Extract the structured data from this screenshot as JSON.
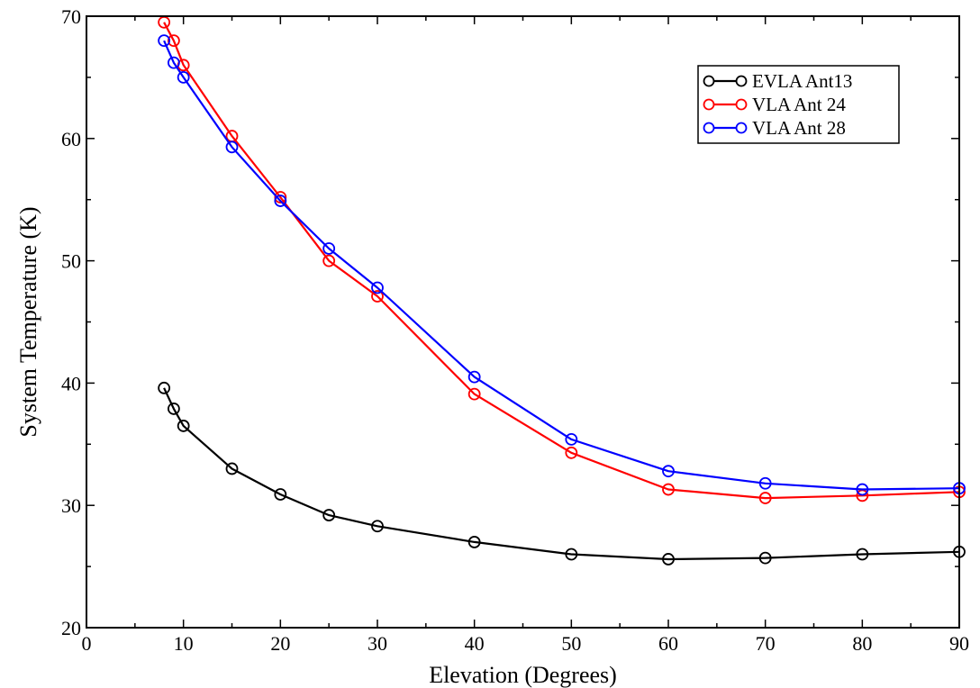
{
  "chart_data": {
    "type": "line",
    "title": "",
    "xlabel": "Elevation (Degrees)",
    "ylabel": "System Temperature (K)",
    "xlim": [
      0,
      90
    ],
    "ylim": [
      20,
      70
    ],
    "x_ticks": [
      0,
      10,
      20,
      30,
      40,
      50,
      60,
      70,
      80,
      90
    ],
    "y_ticks": [
      20,
      30,
      40,
      50,
      60,
      70
    ],
    "x_minor_step": 5,
    "y_minor_step": 5,
    "grid": false,
    "legend_position": "top-right",
    "marker": "open-circle",
    "series": [
      {
        "name": "EVLA Ant13",
        "color": "#000000",
        "x": [
          8,
          9,
          10,
          15,
          20,
          25,
          30,
          40,
          50,
          60,
          70,
          80,
          90
        ],
        "y": [
          39.6,
          37.9,
          36.5,
          33.0,
          30.9,
          29.2,
          28.3,
          27.0,
          26.0,
          25.6,
          25.7,
          26.0,
          26.2
        ]
      },
      {
        "name": "VLA Ant 24",
        "color": "#ff0000",
        "x": [
          8,
          9,
          10,
          15,
          20,
          25,
          30,
          40,
          50,
          60,
          70,
          80,
          90
        ],
        "y": [
          69.5,
          68.0,
          66.0,
          60.2,
          55.2,
          50.0,
          47.1,
          39.1,
          34.3,
          31.3,
          30.6,
          30.8,
          31.1
        ]
      },
      {
        "name": "VLA Ant 28",
        "color": "#0000ff",
        "x": [
          8,
          9,
          10,
          15,
          20,
          25,
          30,
          40,
          50,
          60,
          70,
          80,
          90
        ],
        "y": [
          68.0,
          66.2,
          65.0,
          59.3,
          54.9,
          51.0,
          47.8,
          40.5,
          35.4,
          32.8,
          31.8,
          31.3,
          31.4
        ]
      }
    ]
  }
}
